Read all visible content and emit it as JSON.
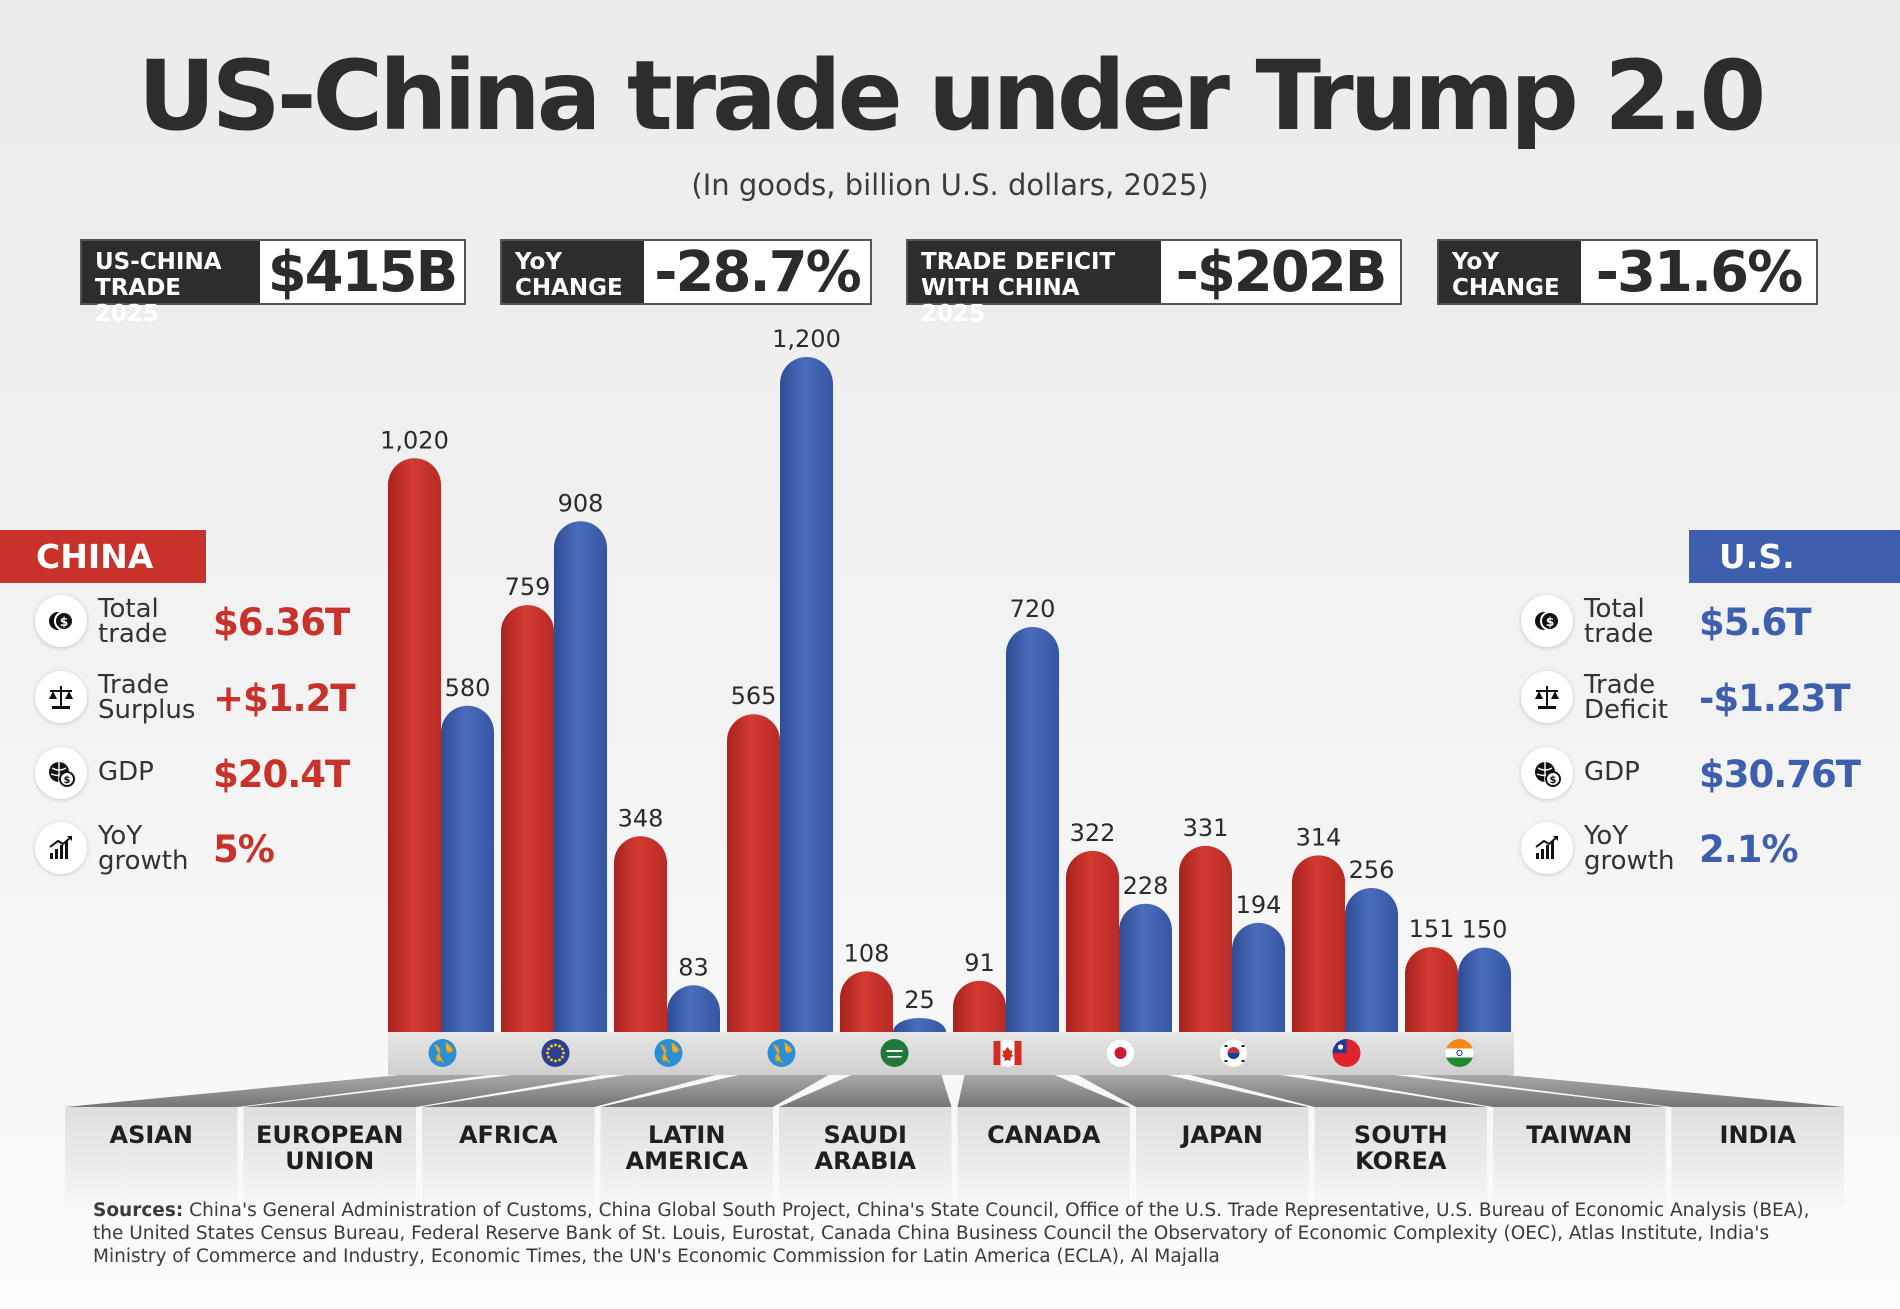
{
  "title": "US-China trade under Trump 2.0",
  "subtitle": "(In goods, billion U.S. dollars, 2025)",
  "stats": [
    {
      "label": "US-CHINA\nTRADE 2025",
      "value": "$415B"
    },
    {
      "label": "YoY\nCHANGE",
      "value": "-28.7%"
    },
    {
      "label": "TRADE DEFICIT\nWITH CHINA 2025",
      "value": "-$202B"
    },
    {
      "label": "YoY\nCHANGE",
      "value": "-31.6%"
    }
  ],
  "colors": {
    "china": "#c8322b",
    "us": "#3e5fae",
    "dark": "#2d2d2d"
  },
  "china": {
    "label": "CHINA",
    "metrics": [
      {
        "icon": "dollar-coins-icon",
        "label": "Total\ntrade",
        "value": "$6.36T"
      },
      {
        "icon": "scales-icon",
        "label": "Trade\nSurplus",
        "value": "+$1.2T"
      },
      {
        "icon": "globe-dollar-icon",
        "label": "GDP",
        "value": "$20.4T"
      },
      {
        "icon": "growth-chart-icon",
        "label": "YoY\ngrowth",
        "value": "5%"
      }
    ]
  },
  "us": {
    "label": "U.S.",
    "metrics": [
      {
        "icon": "dollar-coins-icon",
        "label": "Total\ntrade",
        "value": "$5.6T"
      },
      {
        "icon": "scales-icon",
        "label": "Trade\nDeficit",
        "value": "-$1.23T"
      },
      {
        "icon": "globe-dollar-icon",
        "label": "GDP",
        "value": "$30.76T"
      },
      {
        "icon": "growth-chart-icon",
        "label": "YoY\ngrowth",
        "value": "2.1%"
      }
    ]
  },
  "chart_data": {
    "type": "bar",
    "categories": [
      "ASIAN",
      "EUROPEAN\nUNION",
      "AFRICA",
      "LATIN\nAMERICA",
      "SAUDI\nARABIA",
      "CANADA",
      "JAPAN",
      "SOUTH\nKOREA",
      "TAIWAN",
      "INDIA"
    ],
    "category_icons": [
      "globe-asia-icon",
      "eu-flag-icon",
      "globe-africa-icon",
      "globe-americas-icon",
      "saudi-flag-icon",
      "canada-flag-icon",
      "japan-flag-icon",
      "south-korea-flag-icon",
      "taiwan-flag-icon",
      "india-flag-icon"
    ],
    "series": [
      {
        "values": [
          1020,
          759,
          348,
          565,
          108,
          91,
          322,
          331,
          314,
          151
        ],
        "labels": [
          "1,020",
          "759",
          "348",
          "565",
          "108",
          "91",
          "322",
          "331",
          "314",
          "151"
        ]
      },
      {
        "values": [
          580,
          908,
          83,
          1200,
          25,
          720,
          228,
          194,
          256,
          150
        ],
        "labels": [
          "580",
          "908",
          "83",
          "1,200",
          "25",
          "720",
          "228",
          "194",
          "256",
          "150"
        ]
      }
    ],
    "series_colors": [
      "#c8322b",
      "#3e5fae"
    ]
  },
  "sources": {
    "label": "Sources:",
    "text": " China's General Administration of Customs, China Global South Project, China's State Council, Office of the U.S. Trade Representative, U.S. Bureau of Economic Analysis (BEA), the United States Census Bureau, Federal Reserve Bank of St. Louis, Eurostat, Canada China Business Council the Observatory of Economic Complexity (OEC), Atlas Institute, India's Ministry of Commerce and Industry, Economic Times, the UN's Economic Commission for Latin America (ECLA), Al Majalla"
  }
}
